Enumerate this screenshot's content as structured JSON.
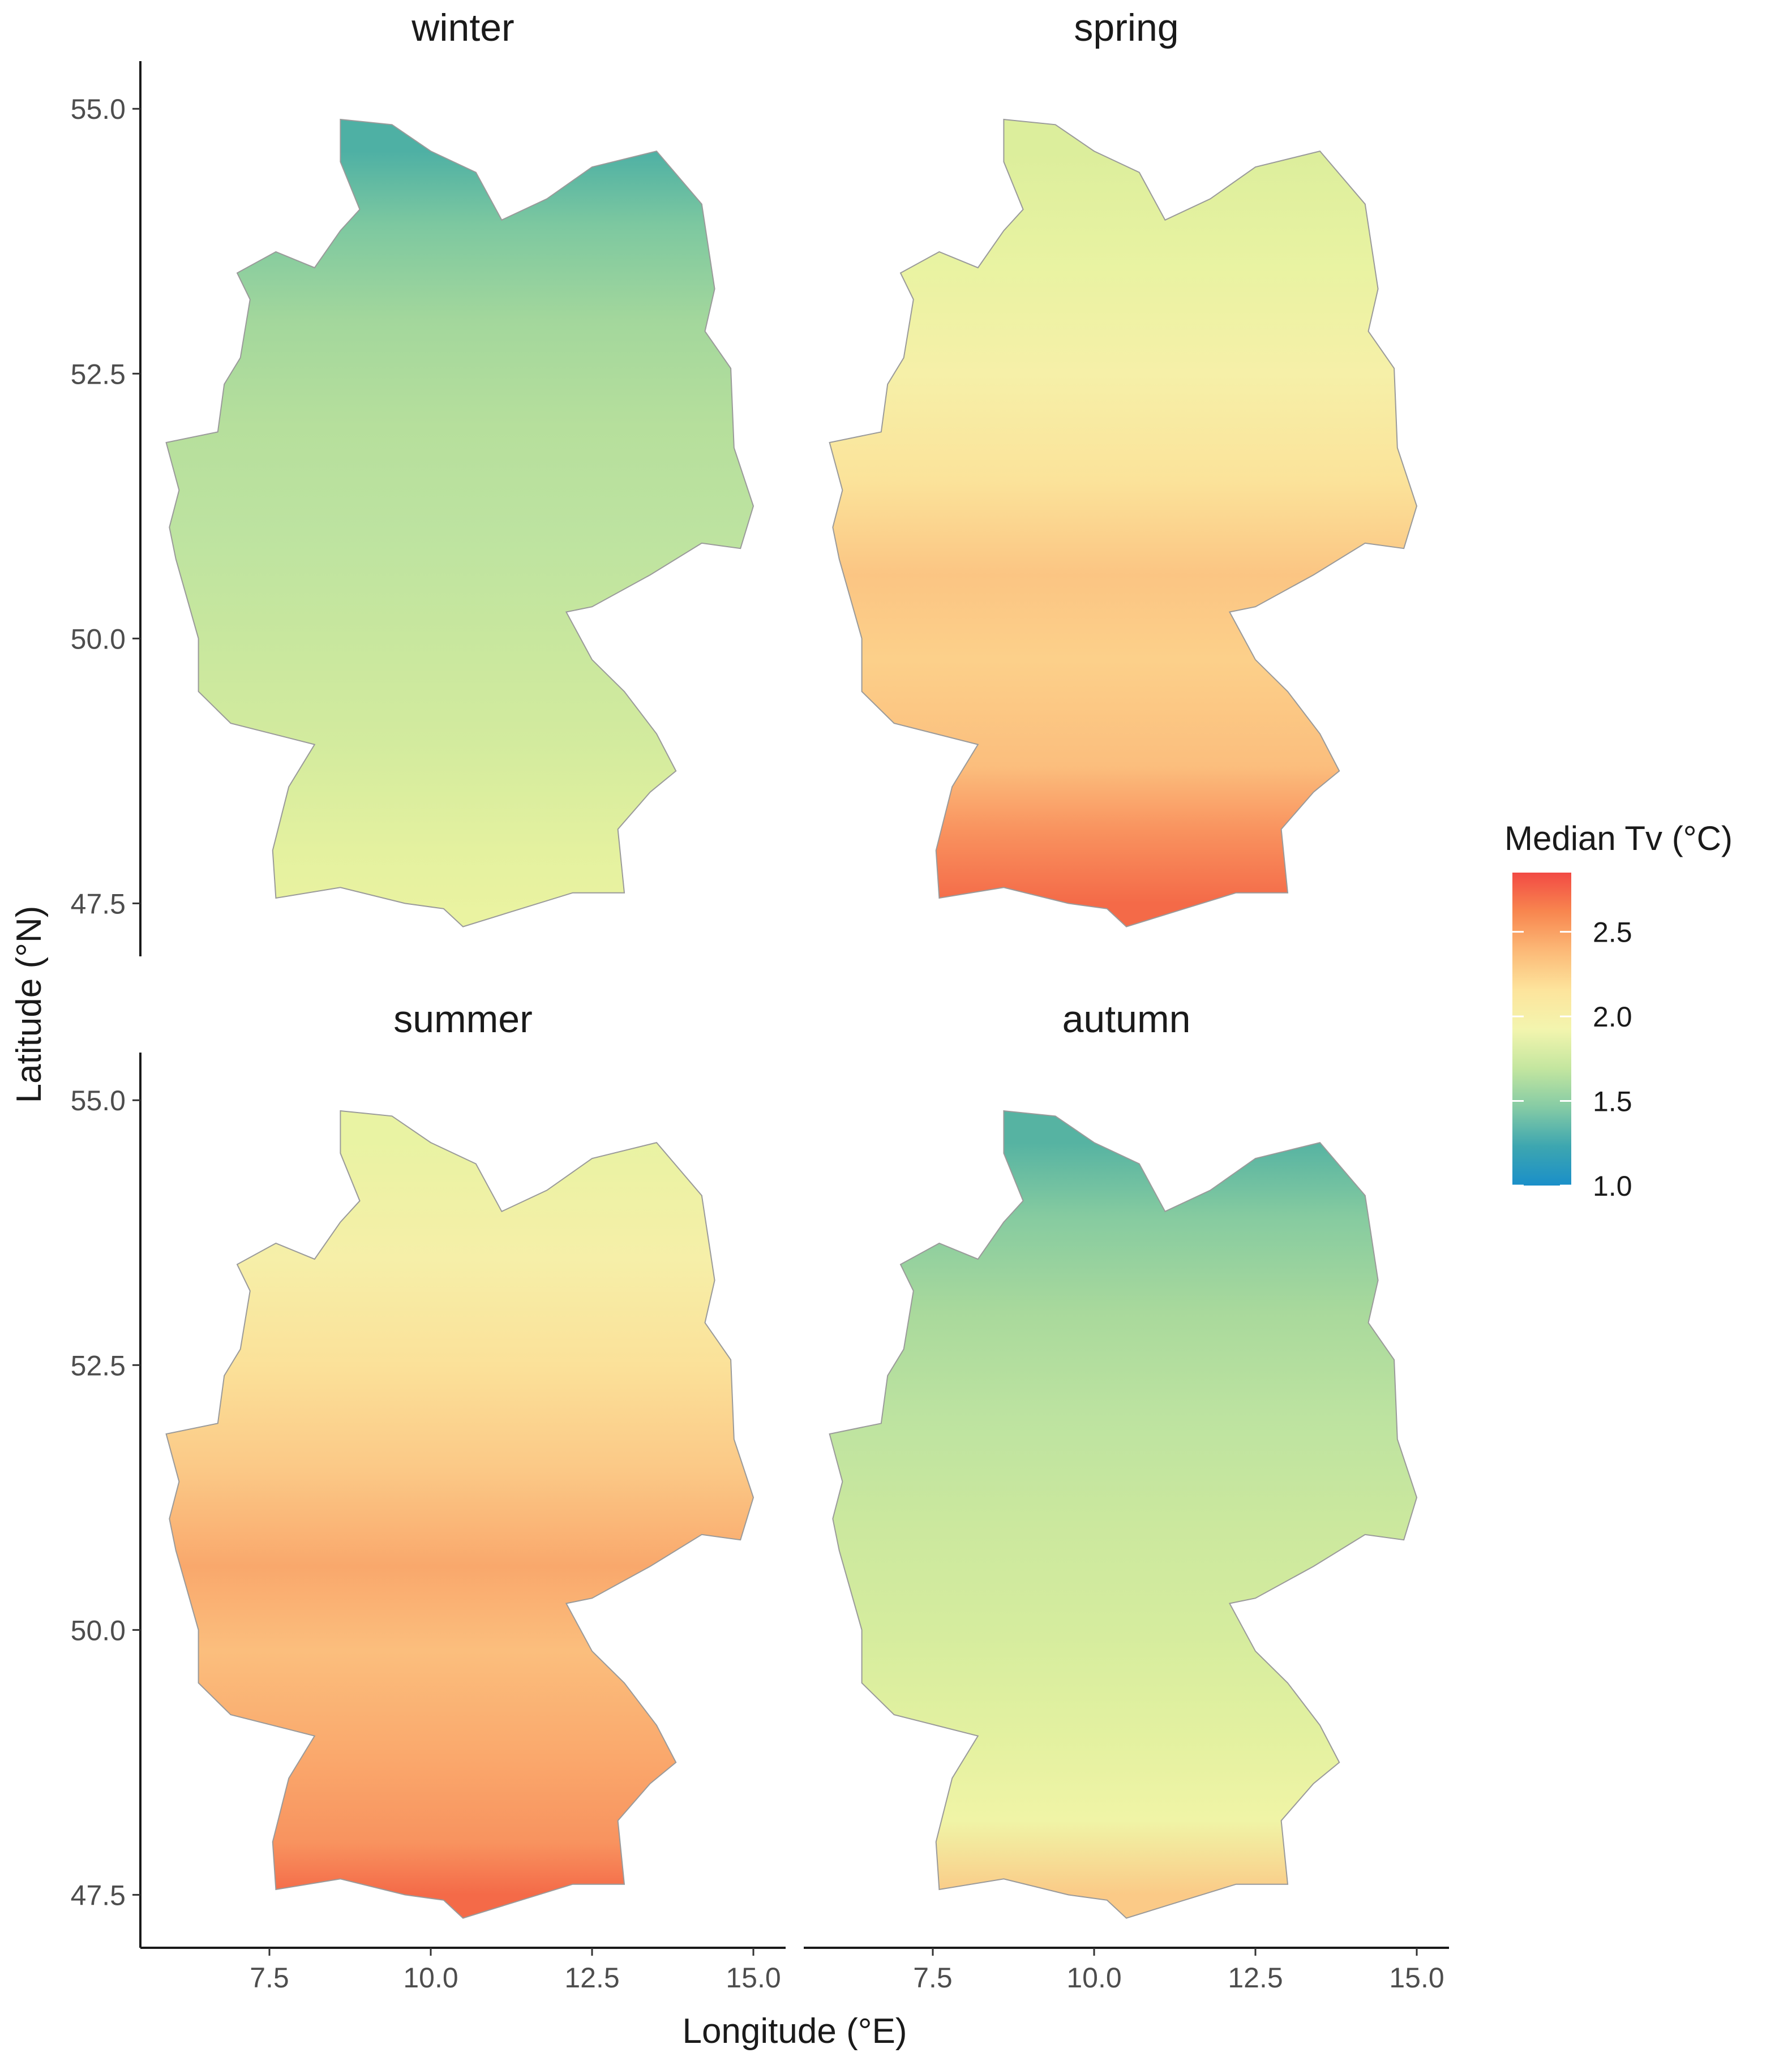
{
  "figure": {
    "panels": [
      {
        "title": "winter",
        "gradient": [
          [
            54.6,
            "#4eb0a4"
          ],
          [
            53.9,
            "#7dc8a0"
          ],
          [
            53.0,
            "#a3d79c"
          ],
          [
            52.0,
            "#b6df9c"
          ],
          [
            51.0,
            "#bde3a0"
          ],
          [
            50.0,
            "#c8e79e"
          ],
          [
            49.0,
            "#d3eb9e"
          ],
          [
            48.0,
            "#e4f19f"
          ],
          [
            47.4,
            "#eaf3a1"
          ]
        ]
      },
      {
        "title": "spring",
        "gradient": [
          [
            54.6,
            "#dcee9c"
          ],
          [
            53.5,
            "#e9f3a2"
          ],
          [
            52.5,
            "#f6f0a8"
          ],
          [
            51.5,
            "#fbe39a"
          ],
          [
            50.6,
            "#fbc583"
          ],
          [
            49.8,
            "#fcd08a"
          ],
          [
            48.8,
            "#fbbe7d"
          ],
          [
            48.2,
            "#f9935f"
          ],
          [
            47.5,
            "#f46a48"
          ]
        ]
      },
      {
        "title": "summer",
        "gradient": [
          [
            54.6,
            "#e9f3a3"
          ],
          [
            53.5,
            "#f6efa8"
          ],
          [
            52.5,
            "#fbe199"
          ],
          [
            51.5,
            "#fbc886"
          ],
          [
            50.6,
            "#f9a86c"
          ],
          [
            49.8,
            "#fbbe7d"
          ],
          [
            48.8,
            "#faa86c"
          ],
          [
            48.0,
            "#f8935f"
          ],
          [
            47.5,
            "#f46a48"
          ]
        ]
      },
      {
        "title": "autumn",
        "gradient": [
          [
            54.6,
            "#56b3a2"
          ],
          [
            53.9,
            "#86cba0"
          ],
          [
            53.0,
            "#a9d99c"
          ],
          [
            52.0,
            "#bde3a0"
          ],
          [
            51.0,
            "#cbe89e"
          ],
          [
            50.0,
            "#d5ec9e"
          ],
          [
            49.0,
            "#e3f1a0"
          ],
          [
            48.2,
            "#f0f4a6"
          ],
          [
            47.5,
            "#fbca87"
          ]
        ]
      }
    ],
    "x_axis": {
      "title": "Longitude (°E)",
      "range": [
        5.5,
        15.5
      ],
      "ticks": [
        7.5,
        10.0,
        12.5,
        15.0
      ],
      "tick_labels": [
        "7.5",
        "10.0",
        "12.5",
        "15.0"
      ]
    },
    "y_axis": {
      "title": "Latitude (°N)",
      "range": [
        47.0,
        55.45
      ],
      "ticks": [
        47.5,
        50.0,
        52.5,
        55.0
      ],
      "tick_labels": [
        "47.5",
        "50.0",
        "52.5",
        "55.0"
      ]
    },
    "legend": {
      "title": "Median Tv (°C)",
      "range": [
        1.0,
        2.85
      ],
      "ticks": [
        1.0,
        1.5,
        2.0,
        2.5
      ],
      "tick_labels": [
        "1.0",
        "1.5",
        "2.0",
        "2.5"
      ],
      "colors": [
        "#1a8fc9",
        "#3da6b0",
        "#85cba5",
        "#c4e69f",
        "#f3f5ae",
        "#fde49c",
        "#fcb977",
        "#f8864f",
        "#f24a44"
      ]
    },
    "boundary_outline": [
      [
        8.6,
        54.9
      ],
      [
        9.4,
        54.85
      ],
      [
        10.0,
        54.6
      ],
      [
        10.7,
        54.4
      ],
      [
        11.1,
        53.95
      ],
      [
        11.8,
        54.15
      ],
      [
        12.5,
        54.45
      ],
      [
        13.5,
        54.6
      ],
      [
        14.2,
        54.1
      ],
      [
        14.4,
        53.3
      ],
      [
        14.25,
        52.9
      ],
      [
        14.65,
        52.55
      ],
      [
        14.7,
        51.8
      ],
      [
        15.0,
        51.25
      ],
      [
        14.8,
        50.85
      ],
      [
        14.2,
        50.9
      ],
      [
        13.4,
        50.6
      ],
      [
        12.5,
        50.3
      ],
      [
        12.1,
        50.25
      ],
      [
        12.5,
        49.8
      ],
      [
        13.0,
        49.5
      ],
      [
        13.5,
        49.1
      ],
      [
        13.8,
        48.75
      ],
      [
        13.4,
        48.55
      ],
      [
        12.9,
        48.2
      ],
      [
        13.0,
        47.6
      ],
      [
        12.2,
        47.6
      ],
      [
        11.4,
        47.45
      ],
      [
        10.5,
        47.28
      ],
      [
        10.2,
        47.45
      ],
      [
        9.6,
        47.5
      ],
      [
        8.6,
        47.65
      ],
      [
        7.6,
        47.55
      ],
      [
        7.55,
        48.0
      ],
      [
        7.8,
        48.6
      ],
      [
        8.2,
        49.0
      ],
      [
        6.9,
        49.2
      ],
      [
        6.4,
        49.5
      ],
      [
        6.4,
        50.0
      ],
      [
        6.05,
        50.75
      ],
      [
        5.95,
        51.05
      ],
      [
        6.1,
        51.4
      ],
      [
        5.9,
        51.85
      ],
      [
        6.7,
        51.95
      ],
      [
        6.8,
        52.4
      ],
      [
        7.05,
        52.65
      ],
      [
        7.2,
        53.2
      ],
      [
        7.0,
        53.45
      ],
      [
        7.6,
        53.65
      ],
      [
        8.2,
        53.5
      ],
      [
        8.6,
        53.85
      ],
      [
        8.9,
        54.05
      ],
      [
        8.6,
        54.5
      ]
    ]
  }
}
